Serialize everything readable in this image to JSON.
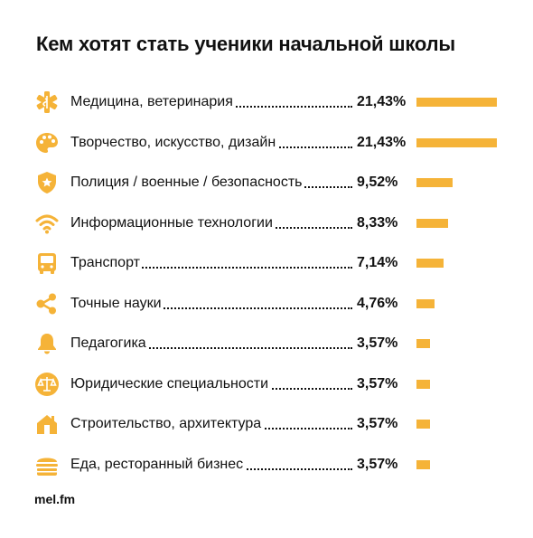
{
  "title": "Кем хотят стать ученики начальной школы",
  "footer": "mel.fm",
  "colors": {
    "bar": "#f5b338",
    "icon": "#f5b338",
    "text": "#111111"
  },
  "chart_data": {
    "type": "bar",
    "orientation": "horizontal",
    "title": "Кем хотят стать ученики начальной школы",
    "categories": [
      "Медицина, ветеринария",
      "Творчество, искусство, дизайн",
      "Полиция / военные / безопасность",
      "Информационные технологии",
      "Транспорт",
      "Точные науки",
      "Педагогика",
      "Юридические специальности",
      "Строительство, архитектура",
      "Еда, ресторанный бизнес"
    ],
    "values": [
      21.43,
      21.43,
      9.52,
      8.33,
      7.14,
      4.76,
      3.57,
      3.57,
      3.57,
      3.57
    ],
    "value_labels": [
      "21,43%",
      "21,43%",
      "9,52%",
      "8,33%",
      "7,14%",
      "4,76%",
      "3,57%",
      "3,57%",
      "3,57%",
      "3,57%"
    ],
    "icons": [
      "medicine-icon",
      "palette-icon",
      "shield-star-icon",
      "wifi-icon",
      "bus-icon",
      "molecule-icon",
      "bell-icon",
      "scales-icon",
      "house-icon",
      "burger-icon"
    ],
    "xlim": [
      0,
      21.43
    ],
    "grid": false,
    "legend": "none"
  }
}
